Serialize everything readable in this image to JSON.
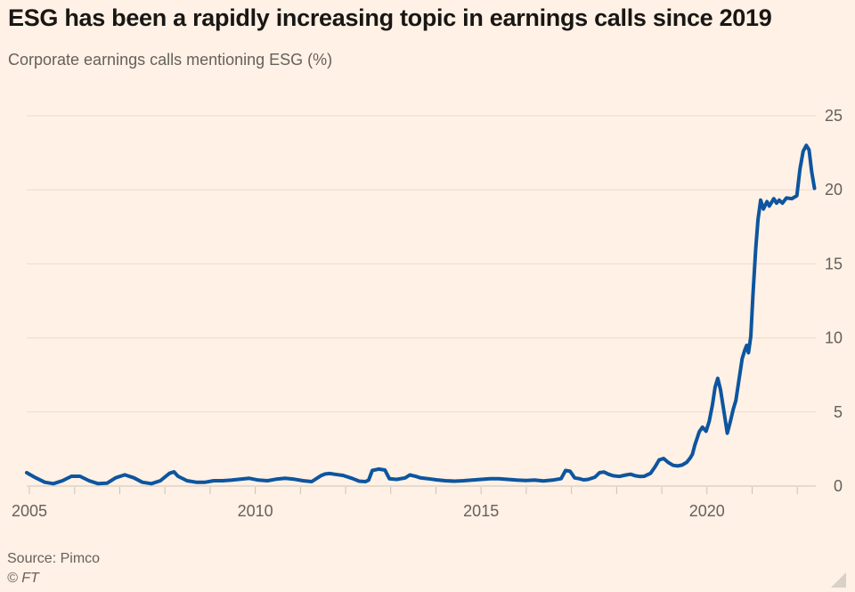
{
  "header": {
    "title": "ESG has been a rapidly increasing topic in earnings calls since 2019",
    "subtitle": "Corporate earnings calls mentioning ESG (%)"
  },
  "footer": {
    "source": "Source: Pimco",
    "copyright": "© FT"
  },
  "colors": {
    "background": "#FFF1E5",
    "line": "#0D559F",
    "grid": "#E9DCCD",
    "axis": "#CCC1B5",
    "title_text": "#1A1614",
    "muted_text": "#66605C",
    "resize_handle": "#D9D0C7"
  },
  "chart_data": {
    "type": "line",
    "title": "ESG has been a rapidly increasing topic in earnings calls since 2019",
    "subtitle": "Corporate earnings calls mentioning ESG (%)",
    "xlabel": "",
    "ylabel": "Corporate earnings calls mentioning ESG (%)",
    "source": "Pimco",
    "legend": "none",
    "grid": "horizontal",
    "xlim": [
      2004.94,
      2022.41
    ],
    "ylim": [
      0,
      25
    ],
    "y_ticks": [
      0,
      5,
      10,
      15,
      20,
      25
    ],
    "x_ticks": [
      2005,
      2006,
      2007,
      2008,
      2009,
      2010,
      2011,
      2012,
      2013,
      2014,
      2015,
      2016,
      2017,
      2018,
      2019,
      2020,
      2021,
      2022
    ],
    "x_labeled_ticks": [
      2005,
      2010,
      2015,
      2020
    ],
    "series": [
      {
        "name": "Corporate earnings calls mentioning ESG (%)",
        "points": [
          [
            2004.94,
            0.9
          ],
          [
            2005.14,
            0.56
          ],
          [
            2005.34,
            0.26
          ],
          [
            2005.53,
            0.16
          ],
          [
            2005.73,
            0.36
          ],
          [
            2005.93,
            0.66
          ],
          [
            2006.12,
            0.66
          ],
          [
            2006.32,
            0.36
          ],
          [
            2006.52,
            0.16
          ],
          [
            2006.72,
            0.2
          ],
          [
            2006.91,
            0.56
          ],
          [
            2007.11,
            0.76
          ],
          [
            2007.31,
            0.56
          ],
          [
            2007.5,
            0.26
          ],
          [
            2007.7,
            0.16
          ],
          [
            2007.9,
            0.36
          ],
          [
            2008.1,
            0.86
          ],
          [
            2008.2,
            0.96
          ],
          [
            2008.29,
            0.66
          ],
          [
            2008.49,
            0.36
          ],
          [
            2008.69,
            0.26
          ],
          [
            2008.89,
            0.26
          ],
          [
            2009.08,
            0.36
          ],
          [
            2009.28,
            0.36
          ],
          [
            2009.48,
            0.4
          ],
          [
            2009.67,
            0.46
          ],
          [
            2009.87,
            0.52
          ],
          [
            2010.07,
            0.4
          ],
          [
            2010.27,
            0.36
          ],
          [
            2010.46,
            0.46
          ],
          [
            2010.66,
            0.52
          ],
          [
            2010.86,
            0.46
          ],
          [
            2011.06,
            0.36
          ],
          [
            2011.25,
            0.3
          ],
          [
            2011.45,
            0.7
          ],
          [
            2011.55,
            0.82
          ],
          [
            2011.65,
            0.85
          ],
          [
            2011.75,
            0.8
          ],
          [
            2011.94,
            0.72
          ],
          [
            2012.14,
            0.52
          ],
          [
            2012.3,
            0.33
          ],
          [
            2012.44,
            0.3
          ],
          [
            2012.51,
            0.4
          ],
          [
            2012.59,
            1.05
          ],
          [
            2012.73,
            1.15
          ],
          [
            2012.87,
            1.08
          ],
          [
            2012.97,
            0.5
          ],
          [
            2013.13,
            0.45
          ],
          [
            2013.32,
            0.55
          ],
          [
            2013.42,
            0.75
          ],
          [
            2013.56,
            0.65
          ],
          [
            2013.66,
            0.55
          ],
          [
            2013.82,
            0.5
          ],
          [
            2014.01,
            0.42
          ],
          [
            2014.21,
            0.36
          ],
          [
            2014.41,
            0.33
          ],
          [
            2014.61,
            0.36
          ],
          [
            2014.8,
            0.4
          ],
          [
            2015.0,
            0.45
          ],
          [
            2015.2,
            0.5
          ],
          [
            2015.39,
            0.5
          ],
          [
            2015.59,
            0.45
          ],
          [
            2015.79,
            0.4
          ],
          [
            2015.99,
            0.38
          ],
          [
            2016.18,
            0.4
          ],
          [
            2016.38,
            0.35
          ],
          [
            2016.58,
            0.4
          ],
          [
            2016.77,
            0.5
          ],
          [
            2016.87,
            1.05
          ],
          [
            2016.97,
            1.0
          ],
          [
            2017.07,
            0.55
          ],
          [
            2017.17,
            0.5
          ],
          [
            2017.27,
            0.42
          ],
          [
            2017.37,
            0.45
          ],
          [
            2017.52,
            0.6
          ],
          [
            2017.62,
            0.9
          ],
          [
            2017.72,
            0.95
          ],
          [
            2017.82,
            0.8
          ],
          [
            2017.92,
            0.7
          ],
          [
            2018.06,
            0.65
          ],
          [
            2018.21,
            0.75
          ],
          [
            2018.31,
            0.8
          ],
          [
            2018.41,
            0.7
          ],
          [
            2018.51,
            0.65
          ],
          [
            2018.61,
            0.66
          ],
          [
            2018.75,
            0.86
          ],
          [
            2018.85,
            1.3
          ],
          [
            2018.94,
            1.76
          ],
          [
            2019.04,
            1.86
          ],
          [
            2019.14,
            1.6
          ],
          [
            2019.25,
            1.4
          ],
          [
            2019.35,
            1.36
          ],
          [
            2019.45,
            1.42
          ],
          [
            2019.55,
            1.6
          ],
          [
            2019.63,
            1.9
          ],
          [
            2019.68,
            2.16
          ],
          [
            2019.73,
            2.76
          ],
          [
            2019.83,
            3.67
          ],
          [
            2019.9,
            3.97
          ],
          [
            2019.98,
            3.7
          ],
          [
            2020.05,
            4.37
          ],
          [
            2020.12,
            5.47
          ],
          [
            2020.18,
            6.67
          ],
          [
            2020.24,
            7.27
          ],
          [
            2020.3,
            6.5
          ],
          [
            2020.37,
            5.17
          ],
          [
            2020.45,
            3.57
          ],
          [
            2020.52,
            4.37
          ],
          [
            2020.58,
            5.17
          ],
          [
            2020.64,
            5.77
          ],
          [
            2020.7,
            7.0
          ],
          [
            2020.78,
            8.6
          ],
          [
            2020.84,
            9.2
          ],
          [
            2020.88,
            9.5
          ],
          [
            2020.92,
            9.0
          ],
          [
            2020.97,
            10.1
          ],
          [
            2021.02,
            13.0
          ],
          [
            2021.08,
            16.0
          ],
          [
            2021.13,
            18.0
          ],
          [
            2021.19,
            19.3
          ],
          [
            2021.25,
            18.7
          ],
          [
            2021.33,
            19.2
          ],
          [
            2021.38,
            18.9
          ],
          [
            2021.48,
            19.4
          ],
          [
            2021.54,
            19.1
          ],
          [
            2021.6,
            19.3
          ],
          [
            2021.67,
            19.1
          ],
          [
            2021.76,
            19.45
          ],
          [
            2021.88,
            19.4
          ],
          [
            2021.99,
            19.6
          ],
          [
            2022.06,
            21.4
          ],
          [
            2022.13,
            22.6
          ],
          [
            2022.2,
            23.0
          ],
          [
            2022.26,
            22.7
          ],
          [
            2022.32,
            21.2
          ],
          [
            2022.38,
            20.1
          ]
        ]
      }
    ]
  }
}
